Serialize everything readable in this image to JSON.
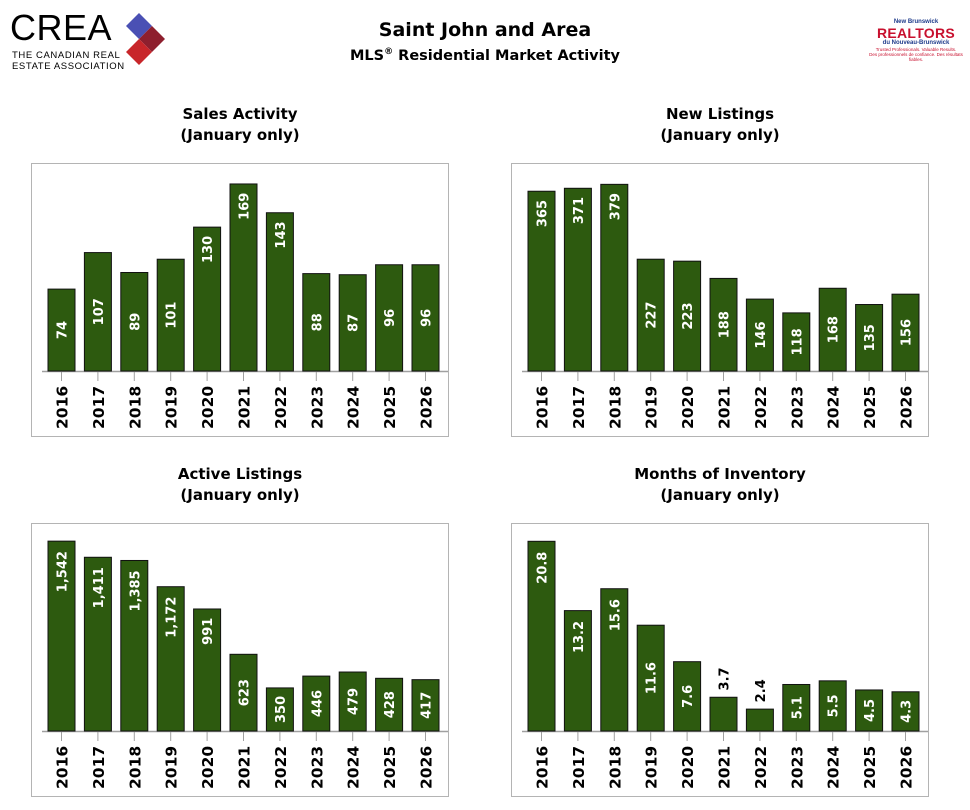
{
  "header": {
    "title": "Saint John and Area",
    "subtitle_prefix": "MLS",
    "subtitle_reg": "®",
    "subtitle_rest": " Residential Market Activity"
  },
  "logos": {
    "crea": {
      "word": "CREA",
      "line1": "THE CANADIAN REAL",
      "line2": "ESTATE ASSOCIATION"
    },
    "realtors": {
      "top": "New Brunswick",
      "main": "REALTORS",
      "bottom": "du Nouveau-Brunswick",
      "tag1": "Trusted Professionals. Valuable Results.",
      "tag2": "Des professionnels de confiance. Des résultats fiables."
    }
  },
  "colors": {
    "bar": "#2d5a0f",
    "bar_edge": "#111111",
    "axis": "#a0a0a0",
    "panel_border": "#b4b4b4"
  },
  "chart_data": [
    {
      "type": "bar",
      "title": "Sales Activity",
      "subtitle": "(January only)",
      "categories": [
        "2016",
        "2017",
        "2018",
        "2019",
        "2020",
        "2021",
        "2022",
        "2023",
        "2024",
        "2025",
        "2026"
      ],
      "values": [
        74,
        107,
        89,
        101,
        130,
        169,
        143,
        88,
        87,
        96,
        96
      ],
      "labels": [
        "74",
        "107",
        "89",
        "101",
        "130",
        "169",
        "143",
        "88",
        "87",
        "96",
        "96"
      ],
      "ylim": [
        0,
        178
      ],
      "grid": false,
      "xlabel": "",
      "ylabel": ""
    },
    {
      "type": "bar",
      "title": "New Listings",
      "subtitle": "(January only)",
      "categories": [
        "2016",
        "2017",
        "2018",
        "2019",
        "2020",
        "2021",
        "2022",
        "2023",
        "2024",
        "2025",
        "2026"
      ],
      "values": [
        365,
        371,
        379,
        227,
        223,
        188,
        146,
        118,
        168,
        135,
        156
      ],
      "labels": [
        "365",
        "371",
        "379",
        "227",
        "223",
        "188",
        "146",
        "118",
        "168",
        "135",
        "156"
      ],
      "ylim": [
        0,
        400
      ],
      "grid": false,
      "xlabel": "",
      "ylabel": ""
    },
    {
      "type": "bar",
      "title": "Active Listings",
      "subtitle": "(January only)",
      "categories": [
        "2016",
        "2017",
        "2018",
        "2019",
        "2020",
        "2021",
        "2022",
        "2023",
        "2024",
        "2025",
        "2026"
      ],
      "values": [
        1542,
        1411,
        1385,
        1172,
        991,
        623,
        350,
        446,
        479,
        428,
        417
      ],
      "labels": [
        "1,542",
        "1,411",
        "1,385",
        "1,172",
        "991",
        "623",
        "350",
        "446",
        "479",
        "428",
        "417"
      ],
      "ylim": [
        0,
        1600
      ],
      "grid": false,
      "xlabel": "",
      "ylabel": ""
    },
    {
      "type": "bar",
      "title": "Months of Inventory",
      "subtitle": "(January only)",
      "categories": [
        "2016",
        "2017",
        "2018",
        "2019",
        "2020",
        "2021",
        "2022",
        "2023",
        "2024",
        "2025",
        "2026"
      ],
      "values": [
        20.8,
        13.2,
        15.6,
        11.6,
        7.6,
        3.7,
        2.4,
        5.1,
        5.5,
        4.5,
        4.3
      ],
      "labels": [
        "20.8",
        "13.2",
        "15.6",
        "11.6",
        "7.6",
        "3.7",
        "2.4",
        "5.1",
        "5.5",
        "4.5",
        "4.3"
      ],
      "ylim": [
        0,
        21.6
      ],
      "grid": false,
      "xlabel": "",
      "ylabel": ""
    }
  ]
}
